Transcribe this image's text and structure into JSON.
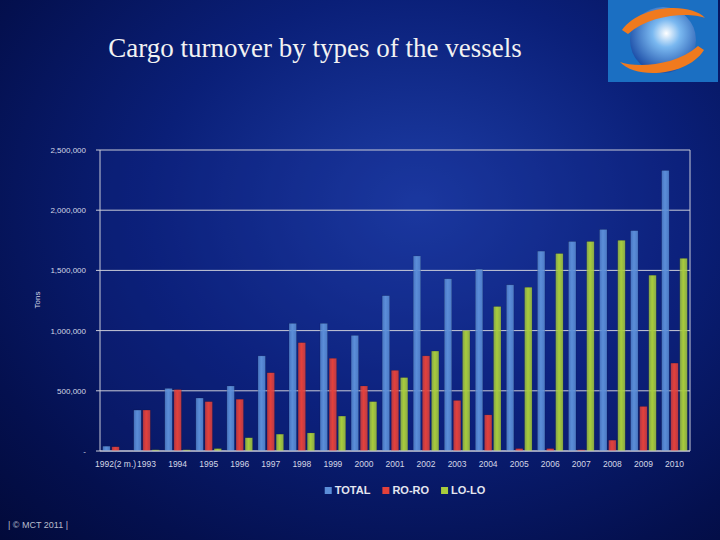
{
  "chart_data": {
    "type": "bar",
    "title": "Cargo turnover by types of the vessels",
    "y_label": "Tons",
    "categories": [
      "1992(2 m.)",
      "1993",
      "1994",
      "1995",
      "1996",
      "1997",
      "1998",
      "1999",
      "2000",
      "2001",
      "2002",
      "2003",
      "2004",
      "2005",
      "2006",
      "2007",
      "2008",
      "2009",
      "2010"
    ],
    "series": [
      {
        "name": "TOTAL",
        "color": "#5b8ed8",
        "values": [
          40000,
          340000,
          520000,
          440000,
          540000,
          790000,
          1060000,
          1060000,
          960000,
          1290000,
          1620000,
          1430000,
          1510000,
          1380000,
          1660000,
          1740000,
          1840000,
          1830000,
          2330000
        ]
      },
      {
        "name": "RO-RO",
        "color": "#e3413b",
        "values": [
          35000,
          340000,
          510000,
          410000,
          430000,
          650000,
          900000,
          770000,
          540000,
          670000,
          790000,
          420000,
          300000,
          20000,
          20000,
          10000,
          90000,
          370000,
          730000
        ]
      },
      {
        "name": "LO-LO",
        "color": "#a8cc3c",
        "values": [
          0,
          10000,
          10000,
          20000,
          110000,
          140000,
          150000,
          290000,
          410000,
          610000,
          830000,
          1000000,
          1200000,
          1360000,
          1640000,
          1740000,
          1750000,
          1460000,
          1600000
        ]
      }
    ],
    "ylim": [
      0,
      2500000
    ],
    "yticks": [
      {
        "value": 0,
        "label": "-"
      },
      {
        "value": 500000,
        "label": "500,000"
      },
      {
        "value": 1000000,
        "label": "1,000,000"
      },
      {
        "value": 1500000,
        "label": "1,500,000"
      },
      {
        "value": 2000000,
        "label": "2,000,000"
      },
      {
        "value": 2500000,
        "label": "2,500,000"
      }
    ],
    "grid": true,
    "legend": "bottom"
  },
  "footer": "| © MCT 2011 |"
}
